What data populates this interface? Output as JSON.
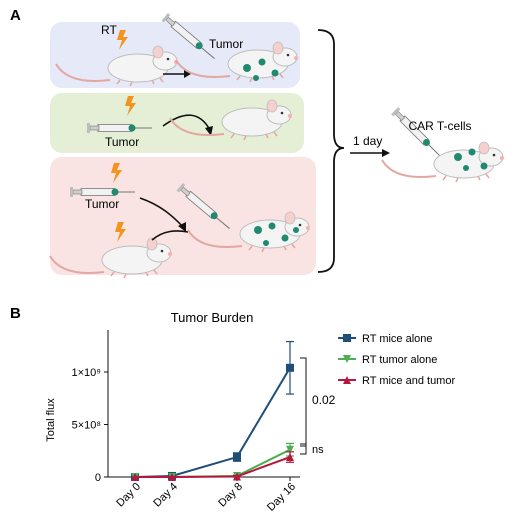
{
  "panel_a": {
    "label": "A",
    "rt_label": "RT",
    "tumor_top_label": "Tumor",
    "tumor_green_label": "Tumor",
    "tumor_red_label": "Tumor",
    "one_day_label": "1 day",
    "car_label": "CAR T-cells"
  },
  "panel_b": {
    "label": "B",
    "significance_top": "0.02",
    "significance_bottom": "ns"
  },
  "colors": {
    "blue_box": "#e6e9f7",
    "green_box": "#e4efd6",
    "red_box": "#fae3e3",
    "series_blue": "#1f4e79",
    "series_green": "#4caf50",
    "series_red": "#b5173d",
    "lightning": "#f2941f",
    "tumor_spot": "#1f8a6e"
  },
  "chart_data": {
    "type": "line",
    "title": "Tumor Burden",
    "xlabel": "",
    "ylabel": "Total flux",
    "categories": [
      "Day 0",
      "Day 4",
      "Day 8",
      "Day 16"
    ],
    "y_ticks": [
      "0",
      "5×10⁸",
      "1×10⁹"
    ],
    "y_tick_values": [
      0,
      500000000,
      1000000000
    ],
    "ylim": [
      0,
      1400000000
    ],
    "legend_position": "right",
    "series": [
      {
        "name": "RT mice alone",
        "color": "#1f4e79",
        "marker": "square",
        "values": [
          0,
          10000000,
          190000000,
          1040000000
        ],
        "errors": [
          0,
          5000000,
          40000000,
          250000000
        ]
      },
      {
        "name": "RT tumor alone",
        "color": "#4caf50",
        "marker": "triangle-down",
        "values": [
          0,
          0,
          10000000,
          260000000
        ],
        "errors": [
          0,
          0,
          10000000,
          60000000
        ]
      },
      {
        "name": "RT mice and tumor",
        "color": "#b5173d",
        "marker": "triangle-up",
        "values": [
          0,
          0,
          5000000,
          190000000
        ],
        "errors": [
          0,
          0,
          8000000,
          50000000
        ]
      }
    ]
  }
}
